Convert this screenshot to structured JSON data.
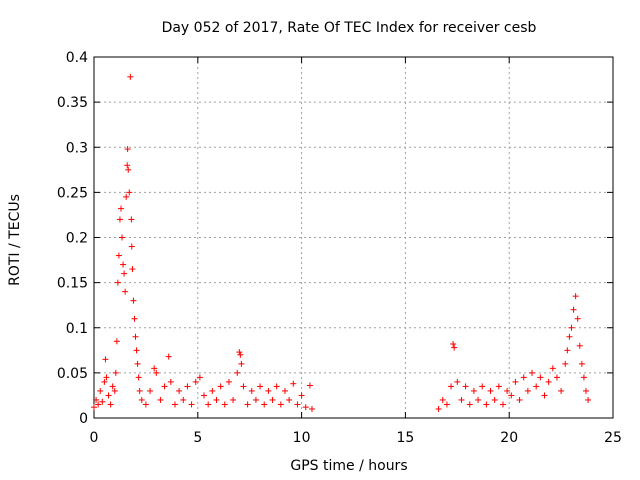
{
  "chart_data": {
    "type": "scatter",
    "title": "Day 052 of 2017, Rate Of TEC Index for receiver cesb",
    "xlabel": "GPS time / hours",
    "ylabel": "ROTI / TECUs",
    "xlim": [
      0,
      25
    ],
    "ylim": [
      0,
      0.4
    ],
    "xticks": [
      0,
      5,
      10,
      15,
      20,
      25
    ],
    "yticks": [
      0,
      0.05,
      0.1,
      0.15,
      0.2,
      0.25,
      0.3,
      0.35,
      0.4
    ],
    "xtick_labels": [
      "0",
      "5",
      "10",
      "15",
      "20",
      "25"
    ],
    "ytick_labels": [
      "0",
      "0.05",
      "0.1",
      "0.15",
      "0.2",
      "0.25",
      "0.3",
      "0.35",
      "0.4"
    ],
    "grid": true,
    "marker": "+",
    "marker_color": "#ff0000",
    "series": [
      {
        "name": "ROTI",
        "points": [
          [
            0.0,
            0.012
          ],
          [
            0.1,
            0.02
          ],
          [
            0.2,
            0.015
          ],
          [
            0.3,
            0.03
          ],
          [
            0.4,
            0.018
          ],
          [
            0.5,
            0.04
          ],
          [
            0.55,
            0.065
          ],
          [
            0.6,
            0.045
          ],
          [
            0.7,
            0.025
          ],
          [
            0.8,
            0.015
          ],
          [
            0.9,
            0.035
          ],
          [
            1.0,
            0.03
          ],
          [
            1.05,
            0.05
          ],
          [
            1.1,
            0.085
          ],
          [
            1.15,
            0.15
          ],
          [
            1.2,
            0.18
          ],
          [
            1.25,
            0.22
          ],
          [
            1.3,
            0.232
          ],
          [
            1.35,
            0.2
          ],
          [
            1.4,
            0.17
          ],
          [
            1.45,
            0.16
          ],
          [
            1.5,
            0.14
          ],
          [
            1.55,
            0.245
          ],
          [
            1.6,
            0.28
          ],
          [
            1.62,
            0.298
          ],
          [
            1.65,
            0.275
          ],
          [
            1.7,
            0.25
          ],
          [
            1.75,
            0.378
          ],
          [
            1.8,
            0.22
          ],
          [
            1.82,
            0.19
          ],
          [
            1.85,
            0.165
          ],
          [
            1.9,
            0.13
          ],
          [
            1.95,
            0.11
          ],
          [
            2.0,
            0.09
          ],
          [
            2.05,
            0.075
          ],
          [
            2.1,
            0.06
          ],
          [
            2.15,
            0.045
          ],
          [
            2.2,
            0.03
          ],
          [
            2.3,
            0.02
          ],
          [
            2.5,
            0.015
          ],
          [
            2.7,
            0.03
          ],
          [
            2.9,
            0.055
          ],
          [
            3.0,
            0.05
          ],
          [
            3.2,
            0.02
          ],
          [
            3.4,
            0.035
          ],
          [
            3.6,
            0.068
          ],
          [
            3.7,
            0.04
          ],
          [
            3.9,
            0.015
          ],
          [
            4.1,
            0.03
          ],
          [
            4.3,
            0.02
          ],
          [
            4.5,
            0.035
          ],
          [
            4.7,
            0.015
          ],
          [
            4.9,
            0.04
          ],
          [
            5.1,
            0.045
          ],
          [
            5.3,
            0.025
          ],
          [
            5.5,
            0.015
          ],
          [
            5.7,
            0.03
          ],
          [
            5.9,
            0.02
          ],
          [
            6.1,
            0.035
          ],
          [
            6.3,
            0.015
          ],
          [
            6.5,
            0.04
          ],
          [
            6.7,
            0.02
          ],
          [
            6.9,
            0.05
          ],
          [
            7.0,
            0.073
          ],
          [
            7.05,
            0.07
          ],
          [
            7.1,
            0.06
          ],
          [
            7.2,
            0.035
          ],
          [
            7.4,
            0.015
          ],
          [
            7.6,
            0.03
          ],
          [
            7.8,
            0.02
          ],
          [
            8.0,
            0.035
          ],
          [
            8.2,
            0.015
          ],
          [
            8.4,
            0.03
          ],
          [
            8.6,
            0.02
          ],
          [
            8.8,
            0.035
          ],
          [
            9.0,
            0.015
          ],
          [
            9.2,
            0.03
          ],
          [
            9.4,
            0.02
          ],
          [
            9.6,
            0.038
          ],
          [
            9.8,
            0.015
          ],
          [
            10.0,
            0.025
          ],
          [
            10.2,
            0.012
          ],
          [
            10.4,
            0.036
          ],
          [
            10.5,
            0.01
          ],
          [
            16.6,
            0.01
          ],
          [
            16.8,
            0.02
          ],
          [
            17.0,
            0.015
          ],
          [
            17.2,
            0.035
          ],
          [
            17.3,
            0.082
          ],
          [
            17.35,
            0.078
          ],
          [
            17.5,
            0.04
          ],
          [
            17.7,
            0.02
          ],
          [
            17.9,
            0.035
          ],
          [
            18.1,
            0.015
          ],
          [
            18.3,
            0.03
          ],
          [
            18.5,
            0.02
          ],
          [
            18.7,
            0.035
          ],
          [
            18.9,
            0.015
          ],
          [
            19.1,
            0.03
          ],
          [
            19.3,
            0.02
          ],
          [
            19.5,
            0.035
          ],
          [
            19.7,
            0.015
          ],
          [
            19.9,
            0.03
          ],
          [
            20.1,
            0.025
          ],
          [
            20.3,
            0.04
          ],
          [
            20.5,
            0.02
          ],
          [
            20.7,
            0.045
          ],
          [
            20.9,
            0.03
          ],
          [
            21.1,
            0.05
          ],
          [
            21.3,
            0.035
          ],
          [
            21.5,
            0.045
          ],
          [
            21.7,
            0.025
          ],
          [
            21.9,
            0.04
          ],
          [
            22.1,
            0.055
          ],
          [
            22.3,
            0.045
          ],
          [
            22.5,
            0.03
          ],
          [
            22.7,
            0.06
          ],
          [
            22.8,
            0.075
          ],
          [
            22.9,
            0.09
          ],
          [
            23.0,
            0.1
          ],
          [
            23.1,
            0.12
          ],
          [
            23.2,
            0.135
          ],
          [
            23.3,
            0.11
          ],
          [
            23.4,
            0.08
          ],
          [
            23.5,
            0.06
          ],
          [
            23.6,
            0.045
          ],
          [
            23.7,
            0.03
          ],
          [
            23.8,
            0.02
          ]
        ]
      }
    ]
  }
}
